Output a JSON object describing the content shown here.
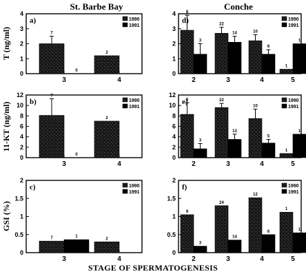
{
  "figure": {
    "col_left_title": "St. Barbe Bay",
    "col_right_title": "Conche",
    "x_axis_title": "STAGE OF SPERMATOGENESIS"
  },
  "legend_labels": [
    "1990",
    "1991"
  ],
  "colors": {
    "series_1990": "#1a1a1a",
    "series_1991": "#000000",
    "axis": "#000000",
    "background": "#ffffff"
  },
  "chart_data": [
    {
      "id": "a",
      "panel_label": "a)",
      "type": "bar",
      "site": "St. Barbe Bay",
      "ylabel": "T (ng/ml)",
      "ylim": [
        0,
        4
      ],
      "yticks": [
        0,
        1,
        2,
        3,
        4
      ],
      "categories": [
        "3",
        "4"
      ],
      "legend_position": "top-right",
      "series": [
        {
          "name": "1990",
          "values": [
            2.0,
            1.2
          ],
          "errors": [
            0.5,
            null
          ],
          "n": [
            "7",
            "2"
          ]
        },
        {
          "name": "1991",
          "values": [
            0,
            null
          ],
          "errors": [
            null,
            null
          ],
          "n": [
            "0",
            null
          ]
        }
      ]
    },
    {
      "id": "b",
      "panel_label": "b)",
      "type": "bar",
      "site": "St. Barbe Bay",
      "ylabel": "11-KT (ng/ml)",
      "ylim": [
        0,
        12
      ],
      "yticks": [
        0,
        2,
        4,
        6,
        8,
        10,
        12
      ],
      "categories": [
        "3",
        "4"
      ],
      "legend_position": "top-right",
      "series": [
        {
          "name": "1990",
          "values": [
            8.1,
            7.0
          ],
          "errors": [
            3.2,
            null
          ],
          "n": [
            "7",
            "2"
          ]
        },
        {
          "name": "1991",
          "values": [
            0,
            null
          ],
          "errors": [
            null,
            null
          ],
          "n": [
            "0",
            null
          ]
        }
      ]
    },
    {
      "id": "c",
      "panel_label": "c)",
      "type": "bar",
      "site": "St. Barbe Bay",
      "ylabel": "GSI (%)",
      "ylim": [
        0,
        2
      ],
      "yticks": [
        0,
        0.5,
        1,
        1.5,
        2
      ],
      "categories": [
        "3",
        "4"
      ],
      "legend_position": "top-right",
      "series": [
        {
          "name": "1990",
          "values": [
            0.32,
            0.3
          ],
          "errors": [
            null,
            null
          ],
          "n": [
            "7",
            "2"
          ]
        },
        {
          "name": "1991",
          "values": [
            0.36,
            null
          ],
          "errors": [
            null,
            null
          ],
          "n": [
            "1",
            null
          ]
        }
      ]
    },
    {
      "id": "d",
      "panel_label": "d)",
      "type": "bar",
      "site": "Conche",
      "ylabel": "",
      "ylim": [
        0,
        4
      ],
      "yticks": [
        0,
        1,
        2,
        3,
        4
      ],
      "categories": [
        "2",
        "3",
        "4",
        "5"
      ],
      "legend_position": "top-right",
      "series": [
        {
          "name": "1990",
          "values": [
            2.9,
            2.7,
            2.2,
            0.3
          ],
          "errors": [
            1.0,
            0.4,
            0.4,
            null
          ],
          "n": [
            "8",
            "22",
            "10",
            "1"
          ]
        },
        {
          "name": "1991",
          "values": [
            1.3,
            2.1,
            1.3,
            2.0
          ],
          "errors": [
            0.7,
            0.4,
            0.3,
            null
          ],
          "n": [
            "3",
            "14",
            "6",
            "1"
          ]
        }
      ]
    },
    {
      "id": "e",
      "panel_label": "e)",
      "type": "bar",
      "site": "Conche",
      "ylabel": "",
      "ylim": [
        0,
        12
      ],
      "yticks": [
        0,
        2,
        4,
        6,
        8,
        10,
        12
      ],
      "categories": [
        "2",
        "3",
        "4",
        "5"
      ],
      "legend_position": "top-right",
      "series": [
        {
          "name": "1990",
          "values": [
            8.3,
            9.6,
            7.5,
            0.8
          ],
          "errors": [
            2.2,
            0.8,
            1.8,
            null
          ],
          "n": [
            "8",
            "22",
            "10",
            "1"
          ]
        },
        {
          "name": "1991",
          "values": [
            1.7,
            3.5,
            2.8,
            4.5
          ],
          "errors": [
            1.0,
            1.0,
            0.7,
            null
          ],
          "n": [
            "3",
            "13",
            "5",
            "1"
          ]
        }
      ]
    },
    {
      "id": "f",
      "panel_label": "f)",
      "type": "bar",
      "site": "Conche",
      "ylabel": "",
      "ylim": [
        0,
        2
      ],
      "yticks": [
        0,
        0.5,
        1,
        1.5,
        2
      ],
      "categories": [
        "2",
        "3",
        "4",
        "5"
      ],
      "legend_position": "top-right",
      "series": [
        {
          "name": "1990",
          "values": [
            1.05,
            1.3,
            1.52,
            1.12
          ],
          "errors": [
            null,
            null,
            null,
            null
          ],
          "n": [
            "9",
            "24",
            "12",
            "1"
          ]
        },
        {
          "name": "1991",
          "values": [
            0.18,
            0.35,
            0.5,
            0.55
          ],
          "errors": [
            null,
            null,
            null,
            null
          ],
          "n": [
            "3",
            "14",
            "6",
            "1"
          ]
        }
      ]
    }
  ]
}
